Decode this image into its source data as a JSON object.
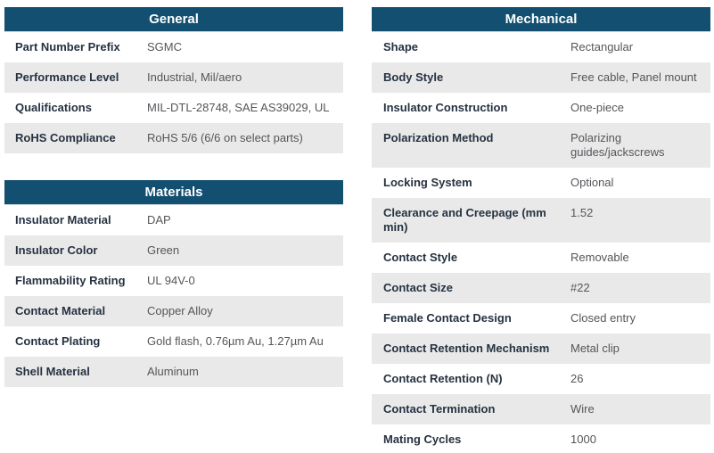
{
  "colors": {
    "header_bg": "#124f70",
    "header_text": "#ffffff",
    "header_edge": "#cfdbe2",
    "row_alt_bg": "#e9e9e9",
    "label_text": "#263241",
    "value_text": "#54565a"
  },
  "tables": {
    "general": {
      "title": "General",
      "rows": [
        {
          "label": "Part Number Prefix",
          "value": "SGMC"
        },
        {
          "label": "Performance Level",
          "value": "Industrial, Mil/aero"
        },
        {
          "label": "Qualifications",
          "value": "MIL-DTL-28748, SAE AS39029, UL"
        },
        {
          "label": "RoHS Compliance",
          "value": "RoHS 5/6 (6/6 on select parts)"
        }
      ]
    },
    "materials": {
      "title": "Materials",
      "rows": [
        {
          "label": "Insulator Material",
          "value": "DAP"
        },
        {
          "label": "Insulator Color",
          "value": "Green"
        },
        {
          "label": "Flammability Rating",
          "value": "UL 94V-0"
        },
        {
          "label": "Contact Material",
          "value": "Copper Alloy"
        },
        {
          "label": "Contact Plating",
          "value": "Gold flash, 0.76µm Au, 1.27µm Au"
        },
        {
          "label": "Shell Material",
          "value": "Aluminum"
        }
      ]
    },
    "mechanical": {
      "title": "Mechanical",
      "rows": [
        {
          "label": "Shape",
          "value": "Rectangular"
        },
        {
          "label": "Body Style",
          "value": "Free cable, Panel mount"
        },
        {
          "label": "Insulator Construction",
          "value": "One-piece"
        },
        {
          "label": "Polarization Method",
          "value": "Polarizing guides/jackscrews"
        },
        {
          "label": "Locking System",
          "value": "Optional"
        },
        {
          "label": "Clearance and Creepage (mm min)",
          "value": "1.52"
        },
        {
          "label": "Contact Style",
          "value": "Removable"
        },
        {
          "label": "Contact Size",
          "value": "#22"
        },
        {
          "label": "Female Contact Design",
          "value": "Closed entry"
        },
        {
          "label": "Contact Retention Mechanism",
          "value": "Metal clip"
        },
        {
          "label": "Contact Retention (N)",
          "value": "26"
        },
        {
          "label": "Contact Termination",
          "value": "Wire"
        },
        {
          "label": "Mating Cycles",
          "value": "1000"
        }
      ]
    }
  }
}
